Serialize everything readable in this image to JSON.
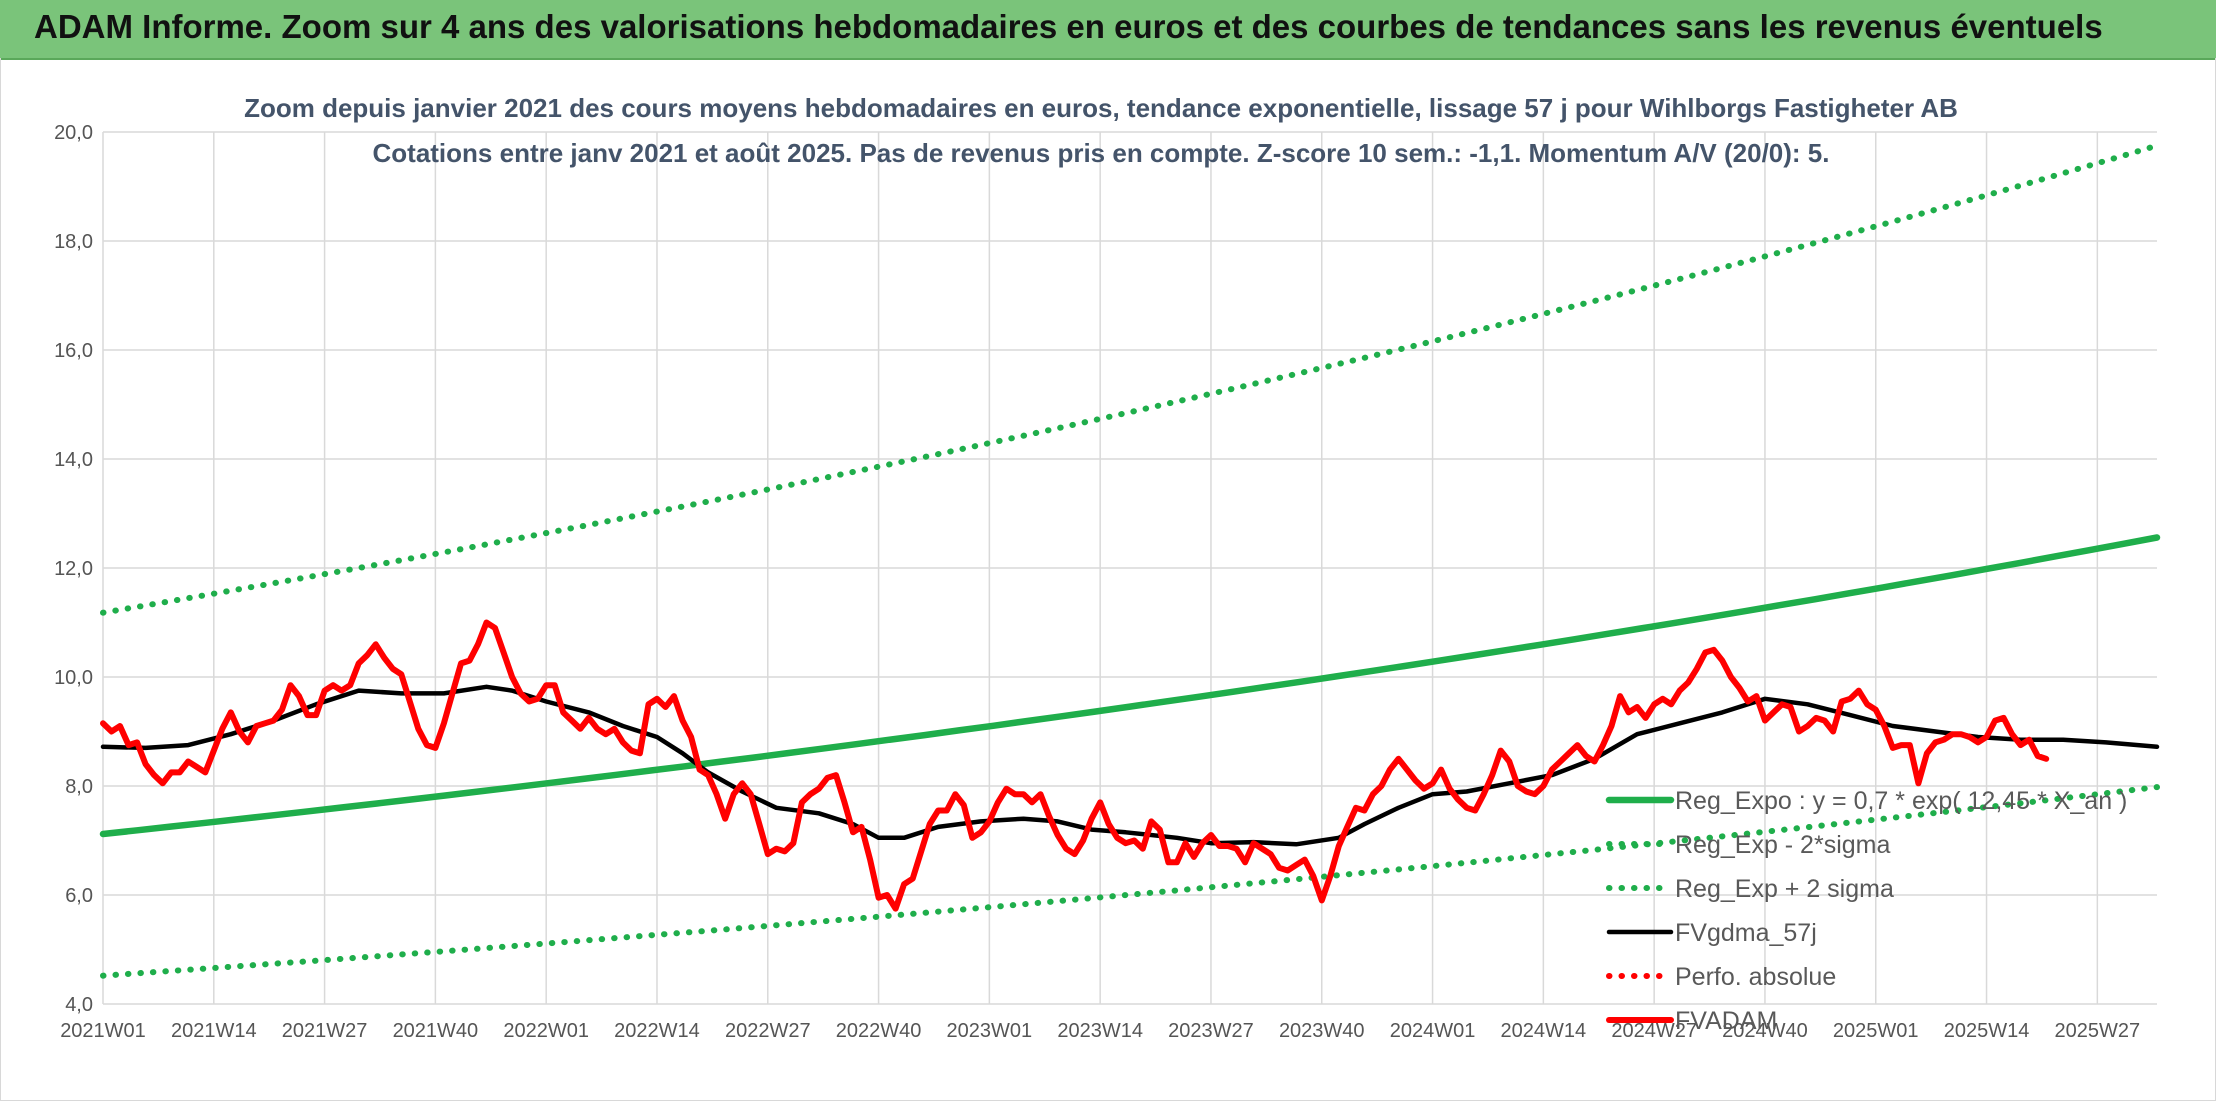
{
  "banner": {
    "title": "ADAM Informe. Zoom sur 4 ans des valorisations hebdomadaires en euros et des courbes de tendances sans les revenus éventuels"
  },
  "chart_data": {
    "type": "line",
    "title": "Zoom depuis janvier 2021 des cours moyens hebdomadaires en euros, tendance exponentielle, lissage 57 j pour Wihlborgs Fastigheter AB",
    "subtitle": "Cotations entre janv 2021 et août 2025. Pas de revenus pris en compte. Z-score 10 sem.: -1,1. Momentum A/V (20/0): 5.",
    "xlabel": "",
    "ylabel": "",
    "ylim": [
      4,
      20
    ],
    "yticks": [
      "4,0",
      "6,0",
      "8,0",
      "10,0",
      "12,0",
      "14,0",
      "16,0",
      "18,0",
      "20,0"
    ],
    "xlim": [
      0,
      241
    ],
    "xticks": [
      {
        "i": 0,
        "label": "2021W01"
      },
      {
        "i": 13,
        "label": "2021W14"
      },
      {
        "i": 26,
        "label": "2021W27"
      },
      {
        "i": 39,
        "label": "2021W40"
      },
      {
        "i": 52,
        "label": "2022W01"
      },
      {
        "i": 65,
        "label": "2022W14"
      },
      {
        "i": 78,
        "label": "2022W27"
      },
      {
        "i": 91,
        "label": "2022W40"
      },
      {
        "i": 104,
        "label": "2023W01"
      },
      {
        "i": 117,
        "label": "2023W14"
      },
      {
        "i": 130,
        "label": "2023W27"
      },
      {
        "i": 143,
        "label": "2023W40"
      },
      {
        "i": 156,
        "label": "2024W01"
      },
      {
        "i": 169,
        "label": "2024W14"
      },
      {
        "i": 182,
        "label": "2024W27"
      },
      {
        "i": 195,
        "label": "2024W40"
      },
      {
        "i": 208,
        "label": "2025W01"
      },
      {
        "i": 221,
        "label": "2025W14"
      },
      {
        "i": 234,
        "label": "2025W27"
      }
    ],
    "grid": true,
    "legend_position": "right",
    "series": [
      {
        "name": "Reg_Expo : y = 0,7 * exp( 12,45 * X_an )",
        "color": "#1fae4b",
        "style": "solid-thick",
        "x": [
          0,
          241
        ],
        "y_start": 7.12,
        "y_end": 12.56,
        "curve": "exponential"
      },
      {
        "name": "Reg_Exp - 2*sigma",
        "color": "#1fae4b",
        "style": "dotted",
        "x": [
          0,
          241
        ],
        "y_start": 4.52,
        "y_end": 7.98,
        "curve": "exponential"
      },
      {
        "name": "Reg_Exp + 2 sigma",
        "color": "#1fae4b",
        "style": "dotted",
        "x": [
          0,
          241
        ],
        "y_start": 11.18,
        "y_end": 19.75,
        "curve": "exponential"
      },
      {
        "name": "FVgdma_57j",
        "color": "#000000",
        "style": "solid",
        "points": [
          [
            0,
            8.72
          ],
          [
            5,
            8.7
          ],
          [
            10,
            8.75
          ],
          [
            15,
            8.95
          ],
          [
            20,
            9.2
          ],
          [
            25,
            9.5
          ],
          [
            30,
            9.75
          ],
          [
            35,
            9.7
          ],
          [
            40,
            9.7
          ],
          [
            45,
            9.82
          ],
          [
            48,
            9.75
          ],
          [
            52,
            9.55
          ],
          [
            57,
            9.35
          ],
          [
            61,
            9.1
          ],
          [
            65,
            8.9
          ],
          [
            68,
            8.6
          ],
          [
            71,
            8.25
          ],
          [
            75,
            7.9
          ],
          [
            79,
            7.6
          ],
          [
            84,
            7.5
          ],
          [
            88,
            7.3
          ],
          [
            91,
            7.05
          ],
          [
            94,
            7.05
          ],
          [
            98,
            7.25
          ],
          [
            103,
            7.35
          ],
          [
            108,
            7.4
          ],
          [
            112,
            7.35
          ],
          [
            116,
            7.2
          ],
          [
            120,
            7.15
          ],
          [
            126,
            7.05
          ],
          [
            130,
            6.95
          ],
          [
            135,
            6.97
          ],
          [
            140,
            6.93
          ],
          [
            145,
            7.05
          ],
          [
            148,
            7.3
          ],
          [
            152,
            7.6
          ],
          [
            156,
            7.85
          ],
          [
            160,
            7.9
          ],
          [
            165,
            8.05
          ],
          [
            170,
            8.2
          ],
          [
            175,
            8.5
          ],
          [
            180,
            8.95
          ],
          [
            185,
            9.15
          ],
          [
            190,
            9.35
          ],
          [
            195,
            9.6
          ],
          [
            200,
            9.5
          ],
          [
            205,
            9.3
          ],
          [
            210,
            9.1
          ],
          [
            215,
            9.0
          ],
          [
            220,
            8.9
          ],
          [
            225,
            8.85
          ],
          [
            230,
            8.85
          ],
          [
            235,
            8.8
          ],
          [
            241,
            8.72
          ]
        ]
      },
      {
        "name": "Perfo. absolue",
        "color": "#ff0000",
        "style": "dotted",
        "points": []
      },
      {
        "name": "FVADAM",
        "color": "#ff0000",
        "style": "solid-thick",
        "points": [
          [
            0,
            9.15
          ],
          [
            1,
            9.0
          ],
          [
            2,
            9.1
          ],
          [
            3,
            8.75
          ],
          [
            4,
            8.8
          ],
          [
            5,
            8.4
          ],
          [
            6,
            8.2
          ],
          [
            7,
            8.05
          ],
          [
            8,
            8.25
          ],
          [
            9,
            8.25
          ],
          [
            10,
            8.45
          ],
          [
            11,
            8.35
          ],
          [
            12,
            8.25
          ],
          [
            13,
            8.65
          ],
          [
            14,
            9.05
          ],
          [
            15,
            9.35
          ],
          [
            16,
            9.0
          ],
          [
            17,
            8.8
          ],
          [
            18,
            9.1
          ],
          [
            19,
            9.15
          ],
          [
            20,
            9.2
          ],
          [
            21,
            9.4
          ],
          [
            22,
            9.85
          ],
          [
            23,
            9.65
          ],
          [
            24,
            9.3
          ],
          [
            25,
            9.3
          ],
          [
            26,
            9.75
          ],
          [
            27,
            9.85
          ],
          [
            28,
            9.75
          ],
          [
            29,
            9.85
          ],
          [
            30,
            10.25
          ],
          [
            31,
            10.4
          ],
          [
            32,
            10.6
          ],
          [
            33,
            10.35
          ],
          [
            34,
            10.15
          ],
          [
            35,
            10.05
          ],
          [
            36,
            9.55
          ],
          [
            37,
            9.05
          ],
          [
            38,
            8.75
          ],
          [
            39,
            8.7
          ],
          [
            40,
            9.15
          ],
          [
            41,
            9.7
          ],
          [
            42,
            10.25
          ],
          [
            43,
            10.3
          ],
          [
            44,
            10.6
          ],
          [
            45,
            11.0
          ],
          [
            46,
            10.9
          ],
          [
            47,
            10.45
          ],
          [
            48,
            10.0
          ],
          [
            49,
            9.7
          ],
          [
            50,
            9.55
          ],
          [
            51,
            9.6
          ],
          [
            52,
            9.85
          ],
          [
            53,
            9.85
          ],
          [
            54,
            9.35
          ],
          [
            55,
            9.2
          ],
          [
            56,
            9.05
          ],
          [
            57,
            9.25
          ],
          [
            58,
            9.05
          ],
          [
            59,
            8.95
          ],
          [
            60,
            9.05
          ],
          [
            61,
            8.8
          ],
          [
            62,
            8.65
          ],
          [
            63,
            8.6
          ],
          [
            64,
            9.5
          ],
          [
            65,
            9.6
          ],
          [
            66,
            9.45
          ],
          [
            67,
            9.65
          ],
          [
            68,
            9.2
          ],
          [
            69,
            8.9
          ],
          [
            70,
            8.3
          ],
          [
            71,
            8.2
          ],
          [
            72,
            7.85
          ],
          [
            73,
            7.4
          ],
          [
            74,
            7.85
          ],
          [
            75,
            8.05
          ],
          [
            76,
            7.85
          ],
          [
            77,
            7.3
          ],
          [
            78,
            6.75
          ],
          [
            79,
            6.85
          ],
          [
            80,
            6.8
          ],
          [
            81,
            6.95
          ],
          [
            82,
            7.7
          ],
          [
            83,
            7.85
          ],
          [
            84,
            7.95
          ],
          [
            85,
            8.15
          ],
          [
            86,
            8.2
          ],
          [
            87,
            7.7
          ],
          [
            88,
            7.15
          ],
          [
            89,
            7.25
          ],
          [
            90,
            6.65
          ],
          [
            91,
            5.95
          ],
          [
            92,
            6.0
          ],
          [
            93,
            5.75
          ],
          [
            94,
            6.2
          ],
          [
            95,
            6.3
          ],
          [
            96,
            6.8
          ],
          [
            97,
            7.3
          ],
          [
            98,
            7.55
          ],
          [
            99,
            7.55
          ],
          [
            100,
            7.85
          ],
          [
            101,
            7.65
          ],
          [
            102,
            7.05
          ],
          [
            103,
            7.15
          ],
          [
            104,
            7.35
          ],
          [
            105,
            7.7
          ],
          [
            106,
            7.95
          ],
          [
            107,
            7.85
          ],
          [
            108,
            7.85
          ],
          [
            109,
            7.7
          ],
          [
            110,
            7.85
          ],
          [
            111,
            7.45
          ],
          [
            112,
            7.1
          ],
          [
            113,
            6.85
          ],
          [
            114,
            6.75
          ],
          [
            115,
            7.0
          ],
          [
            116,
            7.4
          ],
          [
            117,
            7.7
          ],
          [
            118,
            7.3
          ],
          [
            119,
            7.05
          ],
          [
            120,
            6.95
          ],
          [
            121,
            7.0
          ],
          [
            122,
            6.85
          ],
          [
            123,
            7.35
          ],
          [
            124,
            7.2
          ],
          [
            125,
            6.6
          ],
          [
            126,
            6.6
          ],
          [
            127,
            6.95
          ],
          [
            128,
            6.7
          ],
          [
            129,
            6.95
          ],
          [
            130,
            7.1
          ],
          [
            131,
            6.9
          ],
          [
            132,
            6.9
          ],
          [
            133,
            6.85
          ],
          [
            134,
            6.6
          ],
          [
            135,
            6.95
          ],
          [
            136,
            6.85
          ],
          [
            137,
            6.75
          ],
          [
            138,
            6.5
          ],
          [
            139,
            6.45
          ],
          [
            140,
            6.55
          ],
          [
            141,
            6.65
          ],
          [
            142,
            6.35
          ],
          [
            143,
            5.9
          ],
          [
            144,
            6.35
          ],
          [
            145,
            6.9
          ],
          [
            146,
            7.25
          ],
          [
            147,
            7.6
          ],
          [
            148,
            7.55
          ],
          [
            149,
            7.85
          ],
          [
            150,
            8.0
          ],
          [
            151,
            8.3
          ],
          [
            152,
            8.5
          ],
          [
            153,
            8.3
          ],
          [
            154,
            8.1
          ],
          [
            155,
            7.95
          ],
          [
            156,
            8.05
          ],
          [
            157,
            8.3
          ],
          [
            158,
            7.95
          ],
          [
            159,
            7.75
          ],
          [
            160,
            7.6
          ],
          [
            161,
            7.55
          ],
          [
            162,
            7.85
          ],
          [
            163,
            8.2
          ],
          [
            164,
            8.65
          ],
          [
            165,
            8.45
          ],
          [
            166,
            8.0
          ],
          [
            167,
            7.9
          ],
          [
            168,
            7.85
          ],
          [
            169,
            8.0
          ],
          [
            170,
            8.3
          ],
          [
            171,
            8.45
          ],
          [
            172,
            8.6
          ],
          [
            173,
            8.75
          ],
          [
            174,
            8.55
          ],
          [
            175,
            8.45
          ],
          [
            176,
            8.75
          ],
          [
            177,
            9.1
          ],
          [
            178,
            9.65
          ],
          [
            179,
            9.35
          ],
          [
            180,
            9.45
          ],
          [
            181,
            9.25
          ],
          [
            182,
            9.5
          ],
          [
            183,
            9.6
          ],
          [
            184,
            9.5
          ],
          [
            185,
            9.75
          ],
          [
            186,
            9.9
          ],
          [
            187,
            10.15
          ],
          [
            188,
            10.45
          ],
          [
            189,
            10.5
          ],
          [
            190,
            10.3
          ],
          [
            191,
            10.0
          ],
          [
            192,
            9.8
          ],
          [
            193,
            9.55
          ],
          [
            194,
            9.65
          ],
          [
            195,
            9.2
          ],
          [
            196,
            9.35
          ],
          [
            197,
            9.5
          ],
          [
            198,
            9.45
          ],
          [
            199,
            9.0
          ],
          [
            200,
            9.1
          ],
          [
            201,
            9.25
          ],
          [
            202,
            9.2
          ],
          [
            203,
            9.0
          ],
          [
            204,
            9.55
          ],
          [
            205,
            9.6
          ],
          [
            206,
            9.75
          ],
          [
            207,
            9.5
          ],
          [
            208,
            9.4
          ],
          [
            209,
            9.1
          ],
          [
            210,
            8.7
          ],
          [
            211,
            8.75
          ],
          [
            212,
            8.75
          ],
          [
            213,
            8.05
          ],
          [
            214,
            8.6
          ],
          [
            215,
            8.8
          ],
          [
            216,
            8.85
          ],
          [
            217,
            8.95
          ],
          [
            218,
            8.95
          ],
          [
            219,
            8.9
          ],
          [
            220,
            8.8
          ],
          [
            221,
            8.9
          ],
          [
            222,
            9.2
          ],
          [
            223,
            9.25
          ],
          [
            224,
            8.95
          ],
          [
            225,
            8.75
          ],
          [
            226,
            8.85
          ],
          [
            227,
            8.55
          ],
          [
            228,
            8.5
          ]
        ]
      }
    ]
  }
}
